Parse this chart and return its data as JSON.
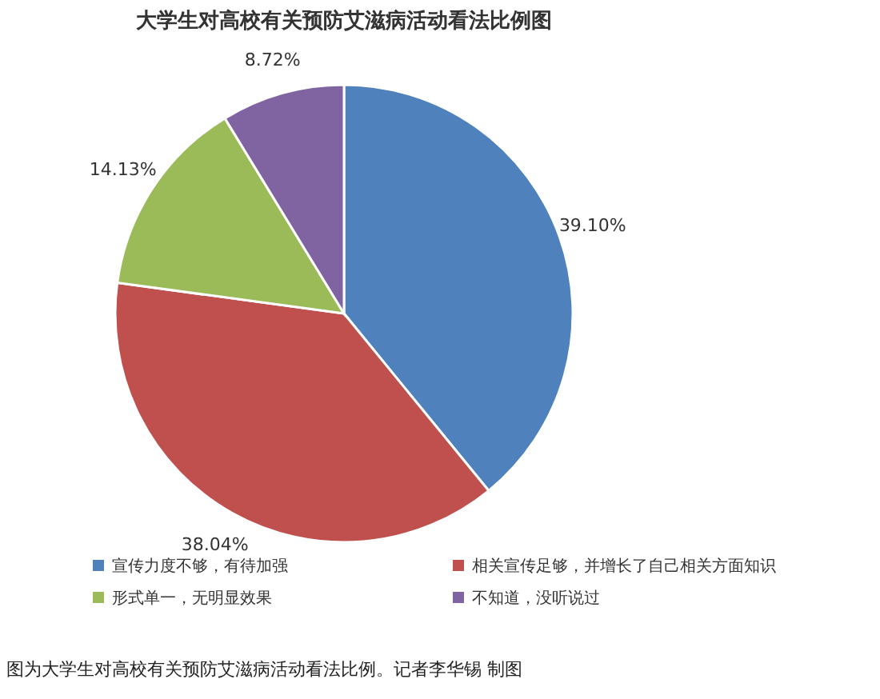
{
  "chart_data": {
    "type": "pie",
    "title": "大学生对高校有关预防艾滋病活动看法比例图",
    "categories": [
      "宣传力度不够，有待加强",
      "相关宣传足够，并增长了自己相关方面知识",
      "形式单一，无明显效果",
      "不知道，没听说过"
    ],
    "values": [
      39.1,
      38.04,
      14.13,
      8.72
    ],
    "value_labels": [
      "39.10%",
      "38.04%",
      "14.13%",
      "8.72%"
    ],
    "colors": [
      "#4f81bd",
      "#c0504d",
      "#9bbb59",
      "#8064a2"
    ],
    "legend": "bottom",
    "annotations": [
      "图为大学生对高校有关预防艾滋病活动看法比例。记者李华锡 制图"
    ]
  }
}
